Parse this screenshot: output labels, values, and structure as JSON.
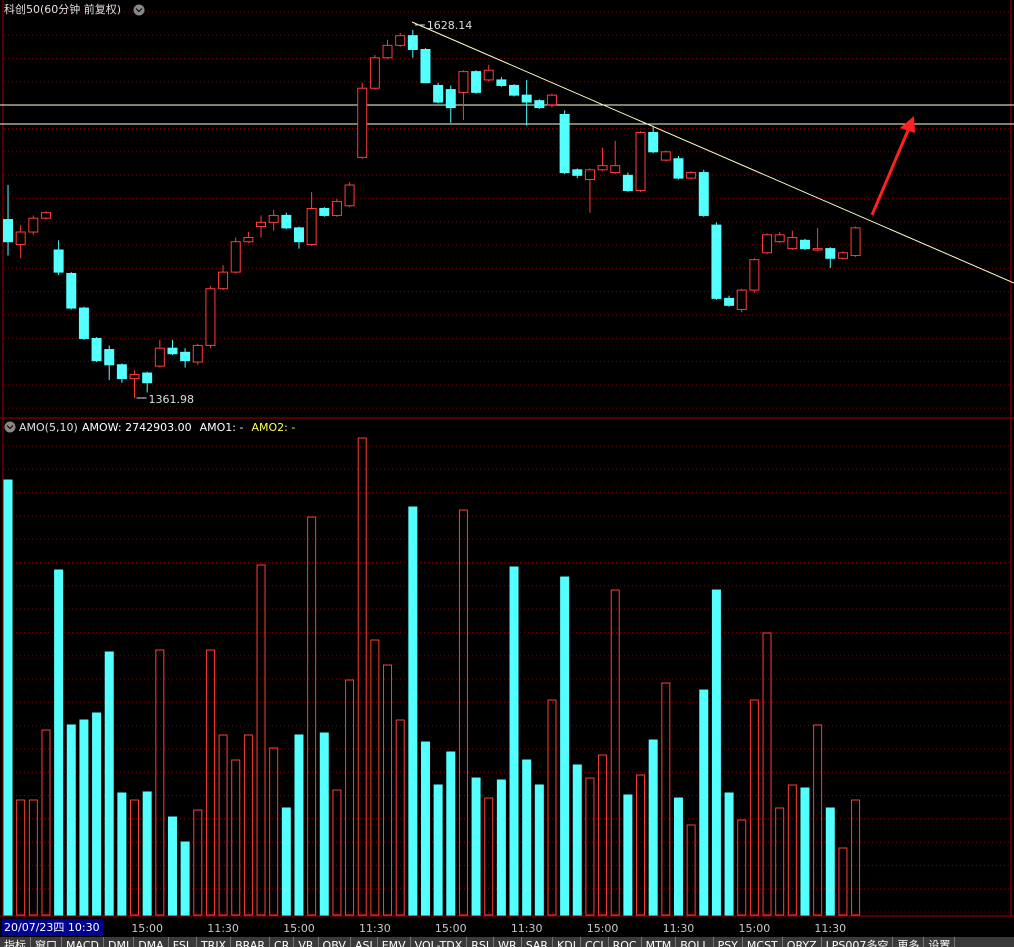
{
  "chart_data": [
    {
      "type": "candlestick",
      "title": "科创50(60分钟 前复权)",
      "up_color": "#ff3c3c",
      "down_color": "#54ffff",
      "ylim": [
        1347.5,
        1649.8
      ],
      "ohlc": [
        [
          1491,
          1516,
          1465,
          1475
        ],
        [
          1473,
          1487,
          1463,
          1482
        ],
        [
          1482,
          1494,
          1480,
          1492
        ],
        [
          1492,
          1497,
          1491,
          1496
        ],
        [
          1469,
          1476,
          1451,
          1453
        ],
        [
          1452,
          1453,
          1426,
          1427
        ],
        [
          1427,
          1428,
          1404,
          1405
        ],
        [
          1405,
          1406,
          1388,
          1389
        ],
        [
          1397,
          1400,
          1375,
          1386
        ],
        [
          1386,
          1387,
          1373,
          1376
        ],
        [
          1376,
          1382,
          1361.98,
          1379
        ],
        [
          1380,
          1381,
          1366,
          1373
        ],
        [
          1385,
          1404,
          1384,
          1398
        ],
        [
          1398,
          1404,
          1393,
          1394
        ],
        [
          1395,
          1398,
          1384,
          1389
        ],
        [
          1388,
          1401,
          1386,
          1400
        ],
        [
          1400,
          1443,
          1398,
          1441
        ],
        [
          1441,
          1458,
          1440,
          1453
        ],
        [
          1453,
          1478,
          1452,
          1475
        ],
        [
          1475,
          1482,
          1474,
          1478
        ],
        [
          1486,
          1494,
          1478,
          1489
        ],
        [
          1489,
          1498,
          1483,
          1494
        ],
        [
          1494,
          1496,
          1484,
          1485
        ],
        [
          1485,
          1486,
          1470,
          1475
        ],
        [
          1473,
          1511,
          1472,
          1499
        ],
        [
          1499,
          1500,
          1493,
          1494
        ],
        [
          1494,
          1506,
          1493,
          1504
        ],
        [
          1501,
          1518,
          1500,
          1516
        ],
        [
          1536,
          1590,
          1535,
          1586
        ],
        [
          1586,
          1610,
          1585,
          1608
        ],
        [
          1608,
          1621,
          1607,
          1617
        ],
        [
          1617,
          1626,
          1616,
          1624
        ],
        [
          1624,
          1628.14,
          1608,
          1614
        ],
        [
          1614,
          1615,
          1590,
          1590
        ],
        [
          1588,
          1590,
          1575,
          1576
        ],
        [
          1585,
          1588,
          1561,
          1572
        ],
        [
          1583,
          1599,
          1563,
          1598
        ],
        [
          1598,
          1599,
          1582,
          1583
        ],
        [
          1592,
          1603,
          1591,
          1599
        ],
        [
          1592,
          1594,
          1587,
          1588
        ],
        [
          1588,
          1589,
          1580,
          1581
        ],
        [
          1581,
          1592,
          1559,
          1576
        ],
        [
          1577,
          1578,
          1571,
          1572
        ],
        [
          1574,
          1582,
          1572,
          1581
        ],
        [
          1567,
          1570,
          1524,
          1525
        ],
        [
          1527,
          1528,
          1521,
          1523
        ],
        [
          1520,
          1528,
          1496,
          1527
        ],
        [
          1527,
          1543,
          1526,
          1530
        ],
        [
          1525,
          1548,
          1524,
          1530
        ],
        [
          1523,
          1525,
          1511,
          1512
        ],
        [
          1512,
          1555,
          1511,
          1554
        ],
        [
          1554,
          1559,
          1539,
          1540
        ],
        [
          1534,
          1541,
          1533,
          1540
        ],
        [
          1535,
          1537,
          1520,
          1521
        ],
        [
          1521,
          1526,
          1520,
          1525
        ],
        [
          1525,
          1527,
          1493,
          1494
        ],
        [
          1487,
          1489,
          1433,
          1434
        ],
        [
          1434,
          1436,
          1428,
          1429
        ],
        [
          1426,
          1441,
          1424,
          1440
        ],
        [
          1440,
          1463,
          1438,
          1462
        ],
        [
          1467,
          1481,
          1466,
          1480
        ],
        [
          1475,
          1482,
          1474,
          1480
        ],
        [
          1470,
          1483,
          1469,
          1478
        ],
        [
          1476,
          1477,
          1469,
          1470
        ],
        [
          1469,
          1485,
          1468,
          1470
        ],
        [
          1470,
          1471,
          1456,
          1463
        ],
        [
          1463,
          1468,
          1462,
          1467
        ],
        [
          1465,
          1486,
          1464,
          1485
        ]
      ]
    },
    {
      "type": "bar",
      "title": "AMO(5,10)",
      "fields": [
        {
          "text": "AMOW: 2742903.00",
          "color": "#ffffff"
        },
        {
          "text": "AMO1: -",
          "color": "#ffffff"
        },
        {
          "text": "AMO2: -",
          "color": "#ffff54"
        }
      ],
      "ylim": [
        0,
        11568000
      ],
      "values": [
        10375000,
        2743000,
        2743000,
        4412000,
        8228000,
        4532000,
        4651000,
        4818000,
        6273000,
        2910000,
        2743000,
        2934000,
        6320000,
        2337000,
        1741000,
        2504000,
        6320000,
        4293000,
        3697000,
        4293000,
        8348000,
        3983000,
        2552000,
        4293000,
        9492000,
        4341000,
        2981000,
        5605000,
        11376000,
        6559000,
        5963000,
        4651000,
        9731000,
        4126000,
        3101000,
        3888000,
        9659000,
        3267000,
        2790000,
        3220000,
        8300000,
        3697000,
        3101000,
        5128000,
        8061000,
        3578000,
        3267000,
        3816000,
        7751000,
        2862000,
        3339000,
        4174000,
        5533000,
        2790000,
        2147000,
        5366000,
        7751000,
        2910000,
        2266000,
        5128000,
        6726000,
        2552000,
        3101000,
        3029000,
        4532000,
        2552000,
        1598000,
        2742903
      ],
      "cursor_label": "20/07/23四 10:30",
      "categories": [
        null,
        null,
        null,
        null,
        null,
        null,
        null,
        null,
        null,
        null,
        null,
        "15:00",
        null,
        null,
        null,
        null,
        null,
        "11:30",
        null,
        null,
        null,
        null,
        null,
        "15:00",
        null,
        null,
        null,
        null,
        null,
        "11:30",
        null,
        null,
        null,
        null,
        null,
        "15:00",
        null,
        null,
        null,
        null,
        null,
        "11:30",
        null,
        null,
        null,
        null,
        null,
        "15:00",
        null,
        null,
        null,
        null,
        null,
        "11:30",
        null,
        null,
        null,
        null,
        null,
        "15:00",
        null,
        null,
        null,
        null,
        null,
        "11:30",
        null,
        null
      ]
    }
  ],
  "tabs": [
    "指标",
    "窗口",
    "MACD",
    "DMI",
    "DMA",
    "FSL",
    "TRIX",
    "BRAR",
    "CR",
    "VR",
    "OBV",
    "ASI",
    "EMV",
    "VOL-TDX",
    "RSI",
    "WR",
    "SAR",
    "KDJ",
    "CCI",
    "ROC",
    "MTM",
    "BOLL",
    "PSY",
    "MCST",
    "QRYZ",
    "LPS007多空",
    "更多",
    "设置"
  ]
}
